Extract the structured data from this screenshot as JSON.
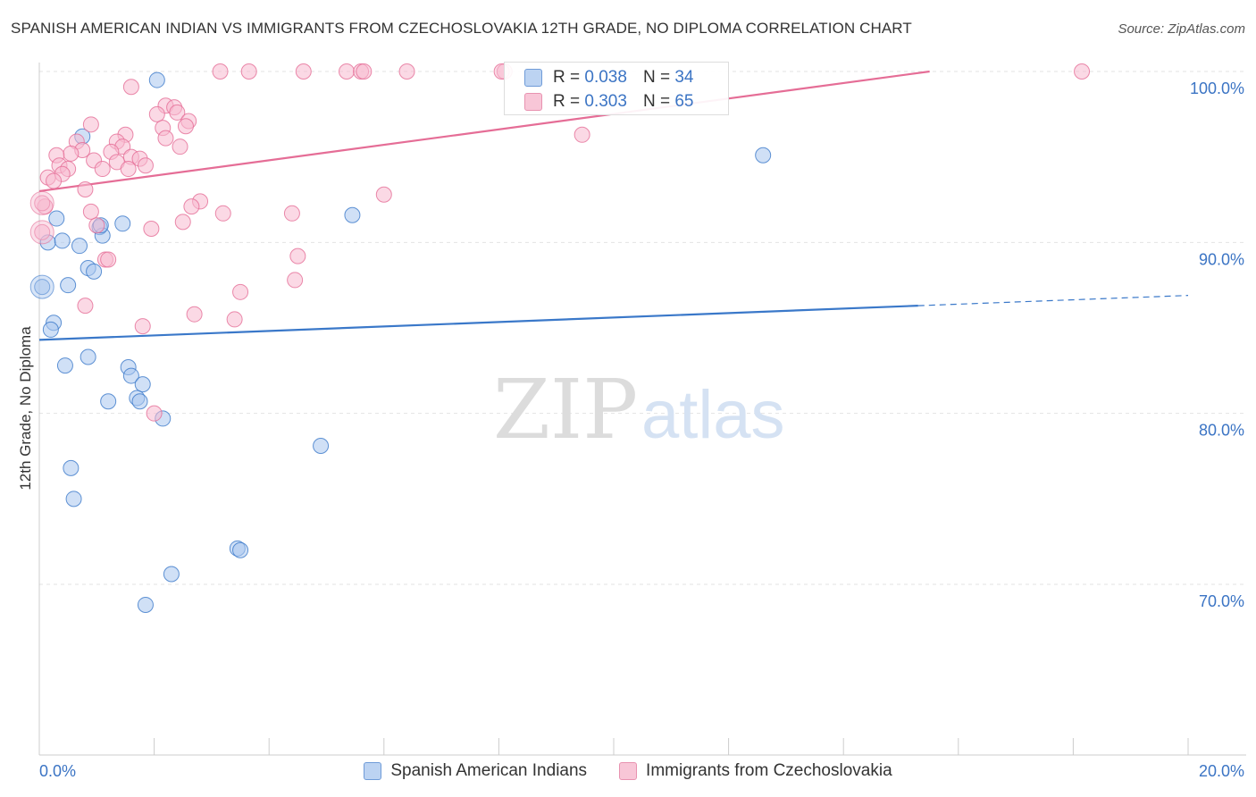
{
  "title": "SPANISH AMERICAN INDIAN VS IMMIGRANTS FROM CZECHOSLOVAKIA 12TH GRADE, NO DIPLOMA CORRELATION CHART",
  "source": "Source: ZipAtlas.com",
  "watermark": {
    "zip": "ZIP",
    "atlas": "atlas"
  },
  "legend": {
    "series1": {
      "r_label": "R =",
      "r_value": "0.038",
      "n_label": "N =",
      "n_value": "34"
    },
    "series2": {
      "r_label": "R =",
      "r_value": "0.303",
      "n_label": "N =",
      "n_value": "65"
    }
  },
  "colors": {
    "blue": "#3a78c9",
    "blue_fill": "#a9c6ee",
    "pink": "#e56d96",
    "pink_fill": "#f7bad0",
    "tick_label": "#3b74c4",
    "grid": "#e3e3e3"
  },
  "chart_data": {
    "type": "scatter",
    "title": "SPANISH AMERICAN INDIAN VS IMMIGRANTS FROM CZECHOSLOVAKIA 12TH GRADE, NO DIPLOMA CORRELATION CHART",
    "xlabel": "",
    "ylabel": "12th Grade, No Diploma",
    "xlim": [
      0,
      20
    ],
    "ylim": [
      60,
      100
    ],
    "x_tick_labels": [
      "0.0%",
      "20.0%"
    ],
    "y_ticks": [
      70,
      80,
      90,
      100
    ],
    "y_tick_labels": [
      "70.0%",
      "80.0%",
      "90.0%",
      "100.0%"
    ],
    "grid": true,
    "legend_position": "top-center",
    "series": [
      {
        "name": "Spanish American Indians",
        "color": "#3a78c9",
        "r": 0.038,
        "n": 34,
        "trend": {
          "x0": 0.0,
          "y0": 84.3,
          "x1": 15.3,
          "y1": 86.3,
          "dashed_to_x": 20.0,
          "dashed_to_y": 86.9
        },
        "points": [
          {
            "x": 2.05,
            "y": 99.5
          },
          {
            "x": 0.75,
            "y": 96.2
          },
          {
            "x": 12.6,
            "y": 95.1
          },
          {
            "x": 0.3,
            "y": 91.4
          },
          {
            "x": 1.45,
            "y": 91.1
          },
          {
            "x": 5.45,
            "y": 91.6
          },
          {
            "x": 1.05,
            "y": 90.9
          },
          {
            "x": 1.1,
            "y": 90.4
          },
          {
            "x": 0.15,
            "y": 90.0
          },
          {
            "x": 0.4,
            "y": 90.1
          },
          {
            "x": 0.7,
            "y": 89.8
          },
          {
            "x": 0.85,
            "y": 88.5
          },
          {
            "x": 0.95,
            "y": 88.3
          },
          {
            "x": 0.05,
            "y": 87.4
          },
          {
            "x": 0.5,
            "y": 87.5
          },
          {
            "x": 0.25,
            "y": 85.3
          },
          {
            "x": 0.2,
            "y": 84.9
          },
          {
            "x": 0.85,
            "y": 83.3
          },
          {
            "x": 0.45,
            "y": 82.8
          },
          {
            "x": 1.55,
            "y": 82.7
          },
          {
            "x": 1.6,
            "y": 82.2
          },
          {
            "x": 1.8,
            "y": 81.7
          },
          {
            "x": 1.7,
            "y": 80.9
          },
          {
            "x": 1.75,
            "y": 80.7
          },
          {
            "x": 1.2,
            "y": 80.7
          },
          {
            "x": 2.15,
            "y": 79.7
          },
          {
            "x": 4.9,
            "y": 78.1
          },
          {
            "x": 0.55,
            "y": 76.8
          },
          {
            "x": 0.6,
            "y": 75.0
          },
          {
            "x": 3.45,
            "y": 72.1
          },
          {
            "x": 3.5,
            "y": 72.0
          },
          {
            "x": 2.3,
            "y": 70.6
          },
          {
            "x": 1.85,
            "y": 68.8
          },
          {
            "x": 1.07,
            "y": 91.0
          }
        ]
      },
      {
        "name": "Immigrants from Czechoslovakia",
        "color": "#e56d96",
        "r": 0.303,
        "n": 65,
        "trend": {
          "x0": 0.0,
          "y0": 93.0,
          "x1": 15.5,
          "y1": 100.0
        },
        "points": [
          {
            "x": 3.15,
            "y": 100.0
          },
          {
            "x": 3.65,
            "y": 100.0
          },
          {
            "x": 4.6,
            "y": 100.0
          },
          {
            "x": 5.35,
            "y": 100.0
          },
          {
            "x": 5.6,
            "y": 100.0
          },
          {
            "x": 6.4,
            "y": 100.0
          },
          {
            "x": 8.1,
            "y": 100.0
          },
          {
            "x": 18.15,
            "y": 100.0
          },
          {
            "x": 1.6,
            "y": 99.1
          },
          {
            "x": 2.2,
            "y": 98.0
          },
          {
            "x": 2.35,
            "y": 97.9
          },
          {
            "x": 2.4,
            "y": 97.6
          },
          {
            "x": 2.05,
            "y": 97.5
          },
          {
            "x": 2.6,
            "y": 97.1
          },
          {
            "x": 0.9,
            "y": 96.9
          },
          {
            "x": 2.15,
            "y": 96.7
          },
          {
            "x": 2.55,
            "y": 96.8
          },
          {
            "x": 1.5,
            "y": 96.3
          },
          {
            "x": 9.45,
            "y": 96.3
          },
          {
            "x": 2.2,
            "y": 96.1
          },
          {
            "x": 0.65,
            "y": 95.9
          },
          {
            "x": 1.35,
            "y": 95.9
          },
          {
            "x": 1.45,
            "y": 95.6
          },
          {
            "x": 2.45,
            "y": 95.6
          },
          {
            "x": 0.75,
            "y": 95.4
          },
          {
            "x": 1.25,
            "y": 95.3
          },
          {
            "x": 0.55,
            "y": 95.2
          },
          {
            "x": 0.3,
            "y": 95.1
          },
          {
            "x": 1.6,
            "y": 95.0
          },
          {
            "x": 1.75,
            "y": 94.9
          },
          {
            "x": 0.95,
            "y": 94.8
          },
          {
            "x": 1.35,
            "y": 94.7
          },
          {
            "x": 0.35,
            "y": 94.5
          },
          {
            "x": 1.85,
            "y": 94.5
          },
          {
            "x": 0.5,
            "y": 94.3
          },
          {
            "x": 1.1,
            "y": 94.3
          },
          {
            "x": 1.55,
            "y": 94.3
          },
          {
            "x": 0.4,
            "y": 94.0
          },
          {
            "x": 0.15,
            "y": 93.8
          },
          {
            "x": 0.25,
            "y": 93.6
          },
          {
            "x": 0.8,
            "y": 93.1
          },
          {
            "x": 6.0,
            "y": 92.8
          },
          {
            "x": 2.8,
            "y": 92.4
          },
          {
            "x": 2.65,
            "y": 92.1
          },
          {
            "x": 0.1,
            "y": 92.1
          },
          {
            "x": 0.9,
            "y": 91.8
          },
          {
            "x": 3.2,
            "y": 91.7
          },
          {
            "x": 4.4,
            "y": 91.7
          },
          {
            "x": 2.5,
            "y": 91.2
          },
          {
            "x": 1.0,
            "y": 91.0
          },
          {
            "x": 1.95,
            "y": 90.8
          },
          {
            "x": 0.05,
            "y": 90.6
          },
          {
            "x": 1.15,
            "y": 89.0
          },
          {
            "x": 1.2,
            "y": 89.0
          },
          {
            "x": 4.5,
            "y": 89.2
          },
          {
            "x": 4.45,
            "y": 87.8
          },
          {
            "x": 3.5,
            "y": 87.1
          },
          {
            "x": 0.8,
            "y": 86.3
          },
          {
            "x": 2.7,
            "y": 85.8
          },
          {
            "x": 3.4,
            "y": 85.5
          },
          {
            "x": 1.8,
            "y": 85.1
          },
          {
            "x": 2.0,
            "y": 80.0
          },
          {
            "x": 8.05,
            "y": 100.0
          },
          {
            "x": 5.65,
            "y": 100.0
          },
          {
            "x": 0.05,
            "y": 92.3
          }
        ]
      }
    ]
  }
}
